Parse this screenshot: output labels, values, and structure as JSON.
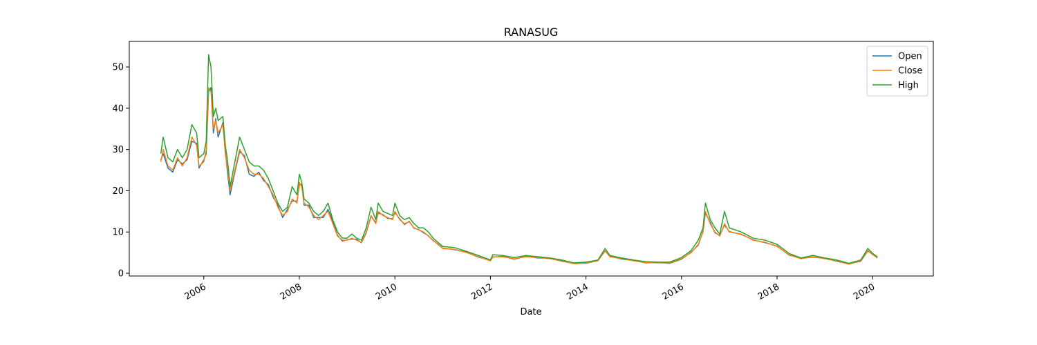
{
  "chart_data": {
    "type": "line",
    "title": "RANASUG",
    "x_label": "Date",
    "x": [
      2005.1,
      2005.15,
      2005.25,
      2005.35,
      2005.45,
      2005.55,
      2005.65,
      2005.75,
      2005.85,
      2005.9,
      2006.0,
      2006.05,
      2006.1,
      2006.15,
      2006.2,
      2006.25,
      2006.3,
      2006.4,
      2006.45,
      2006.5,
      2006.55,
      2006.65,
      2006.75,
      2006.85,
      2006.95,
      2007.05,
      2007.15,
      2007.25,
      2007.35,
      2007.45,
      2007.55,
      2007.65,
      2007.75,
      2007.85,
      2007.95,
      2008.0,
      2008.05,
      2008.1,
      2008.2,
      2008.3,
      2008.4,
      2008.5,
      2008.6,
      2008.7,
      2008.8,
      2008.9,
      2009.0,
      2009.1,
      2009.2,
      2009.3,
      2009.4,
      2009.5,
      2009.6,
      2009.65,
      2009.75,
      2009.85,
      2009.95,
      2010.0,
      2010.1,
      2010.2,
      2010.3,
      2010.4,
      2010.5,
      2010.6,
      2010.7,
      2010.8,
      2010.9,
      2011.0,
      2011.25,
      2011.5,
      2011.75,
      2012.0,
      2012.05,
      2012.25,
      2012.5,
      2012.75,
      2013.0,
      2013.25,
      2013.5,
      2013.75,
      2014.0,
      2014.25,
      2014.4,
      2014.5,
      2014.75,
      2015.0,
      2015.25,
      2015.5,
      2015.75,
      2016.0,
      2016.2,
      2016.35,
      2016.45,
      2016.5,
      2016.6,
      2016.7,
      2016.8,
      2016.9,
      2017.0,
      2017.25,
      2017.5,
      2017.75,
      2018.0,
      2018.25,
      2018.5,
      2018.75,
      2019.0,
      2019.25,
      2019.5,
      2019.75,
      2019.9,
      2020.0,
      2020.1
    ],
    "series": [
      {
        "name": "Open",
        "color": "#1f77b4",
        "values": [
          27.5,
          29,
          25.5,
          24.5,
          27.5,
          26.5,
          27.5,
          32,
          31.5,
          25.5,
          27.5,
          29,
          44,
          45,
          34,
          37.5,
          33,
          36.5,
          29.5,
          24,
          19,
          24.5,
          29.5,
          28.5,
          24,
          23.5,
          24.5,
          22.5,
          21.5,
          18.5,
          16.5,
          13.5,
          15.5,
          17.5,
          17.5,
          21.5,
          21.5,
          16.5,
          16.5,
          13.5,
          13.5,
          13.5,
          15.5,
          12.5,
          9.2,
          7.8,
          8.1,
          8.3,
          8.2,
          7.4,
          9.8,
          13.8,
          12.3,
          14.6,
          14.2,
          13.3,
          13.2,
          14.7,
          13.2,
          11.8,
          12.6,
          10.9,
          10.6,
          9.8,
          9.1,
          7.9,
          7.1,
          6.1,
          5.7,
          5.1,
          3.9,
          3.1,
          3.9,
          4.1,
          3.4,
          4.1,
          3.7,
          3.6,
          2.9,
          2.4,
          2.4,
          3.1,
          5.4,
          4.1,
          3.4,
          3.1,
          2.5,
          2.6,
          2.4,
          3.4,
          5.1,
          6.8,
          10.2,
          14.6,
          12.3,
          9.8,
          9.2,
          11.7,
          10.1,
          9.4,
          8.1,
          7.4,
          6.6,
          4.4,
          3.6,
          3.9,
          3.6,
          2.9,
          2.3,
          2.9,
          5.4,
          4.6,
          3.7
        ]
      },
      {
        "name": "Close",
        "color": "#ff7f0e",
        "values": [
          27,
          30,
          26,
          25,
          28,
          26,
          28,
          33,
          31,
          26,
          27,
          30,
          45,
          44,
          35,
          37,
          34,
          36,
          29,
          25,
          20,
          25,
          30,
          28,
          25,
          24,
          24,
          23,
          21,
          19,
          16,
          14,
          15,
          18,
          17,
          22,
          21,
          17,
          16,
          14,
          13,
          14,
          15,
          12,
          9,
          8,
          8,
          8.5,
          8,
          7.5,
          10,
          14,
          12,
          15,
          14,
          13.5,
          13,
          15,
          13,
          12,
          12.5,
          11,
          10.5,
          10,
          9,
          8,
          7,
          6,
          5.8,
          5,
          4,
          3,
          4,
          4,
          3.5,
          4,
          3.8,
          3.5,
          3,
          2.3,
          2.5,
          3,
          5.5,
          4,
          3.5,
          3,
          2.6,
          2.5,
          2.5,
          3.5,
          5,
          7,
          10,
          15,
          12,
          10,
          9,
          12,
          10,
          9.5,
          8,
          7.5,
          6.5,
          4.5,
          3.5,
          4,
          3.5,
          3,
          2.2,
          3,
          5.5,
          4.5,
          3.8
        ]
      },
      {
        "name": "High",
        "color": "#2ca02c",
        "values": [
          29,
          33,
          28,
          27,
          30,
          28,
          30,
          36,
          34,
          28,
          29,
          32,
          53,
          50,
          38,
          40,
          37,
          38,
          31,
          27,
          21,
          27,
          33,
          30,
          27,
          26,
          26,
          25,
          23,
          20,
          17,
          15,
          16,
          21,
          19,
          24,
          22,
          18,
          17,
          15,
          14,
          15,
          17,
          13,
          10,
          8.5,
          8.5,
          9.5,
          8.5,
          8,
          11,
          16,
          13,
          17,
          15,
          14.5,
          14,
          17,
          14,
          13,
          13.5,
          12,
          11,
          11,
          10,
          8.5,
          7.5,
          6.5,
          6.2,
          5.3,
          4.3,
          3.2,
          4.5,
          4.3,
          3.8,
          4.3,
          4,
          3.7,
          3.2,
          2.5,
          2.7,
          3.2,
          6,
          4.3,
          3.7,
          3.2,
          2.8,
          2.7,
          2.7,
          3.8,
          5.5,
          8,
          11,
          17,
          13,
          11,
          9.5,
          15,
          11,
          10,
          8.5,
          8,
          7,
          4.8,
          3.7,
          4.3,
          3.7,
          3.2,
          2.4,
          3.2,
          6,
          4.8,
          4
        ]
      }
    ],
    "xlim": [
      2004.44,
      2021.27
    ],
    "xticks": [
      2006,
      2008,
      2010,
      2012,
      2014,
      2016,
      2018,
      2020
    ],
    "ylim": [
      -0.67,
      56.2
    ],
    "yticks": [
      0,
      10,
      20,
      30,
      40,
      50
    ],
    "legend": "upper right"
  }
}
